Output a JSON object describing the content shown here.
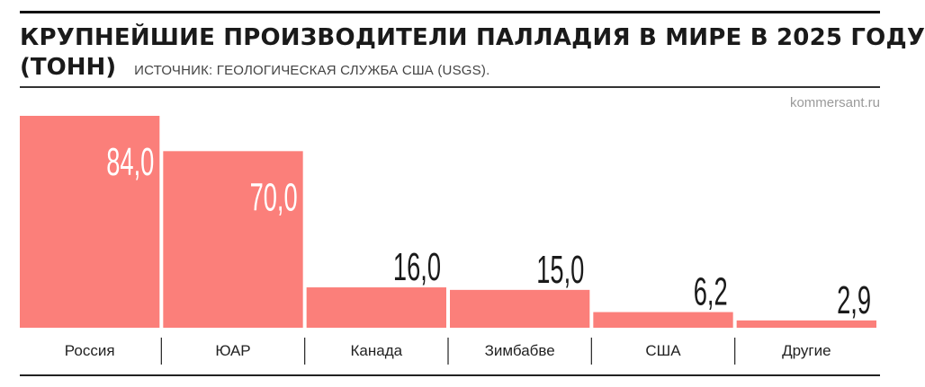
{
  "header": {
    "title": "КРУПНЕЙШИЕ ПРОИЗВОДИТЕЛИ ПАЛЛАДИЯ В МИРЕ В 2025 ГОДУ",
    "unit": "(ТОНН)",
    "source": "ИСТОЧНИК: ГЕОЛОГИЧЕСКАЯ СЛУЖБА США (USGS).",
    "watermark": "kommersant.ru"
  },
  "colors": {
    "bar": "#fb7f7a",
    "label_inside": "#ffffff",
    "label_outside": "#1a1a1a",
    "axis": "#222222"
  },
  "chart_data": {
    "type": "bar",
    "title": "КРУПНЕЙШИЕ ПРОИЗВОДИТЕЛИ ПАЛЛАДИЯ В МИРЕ В 2025 ГОДУ",
    "ylabel": "",
    "xlabel": "",
    "categories": [
      "Россия",
      "ЮАР",
      "Канада",
      "Зимбабве",
      "США",
      "Другие"
    ],
    "values": [
      84.0,
      70.0,
      16.0,
      15.0,
      6.2,
      2.9
    ],
    "value_labels": [
      "84,0",
      "70,0",
      "16,0",
      "15,0",
      "6,2",
      "2,9"
    ],
    "ylim": [
      0,
      84
    ],
    "grid": false,
    "legend": "none"
  }
}
